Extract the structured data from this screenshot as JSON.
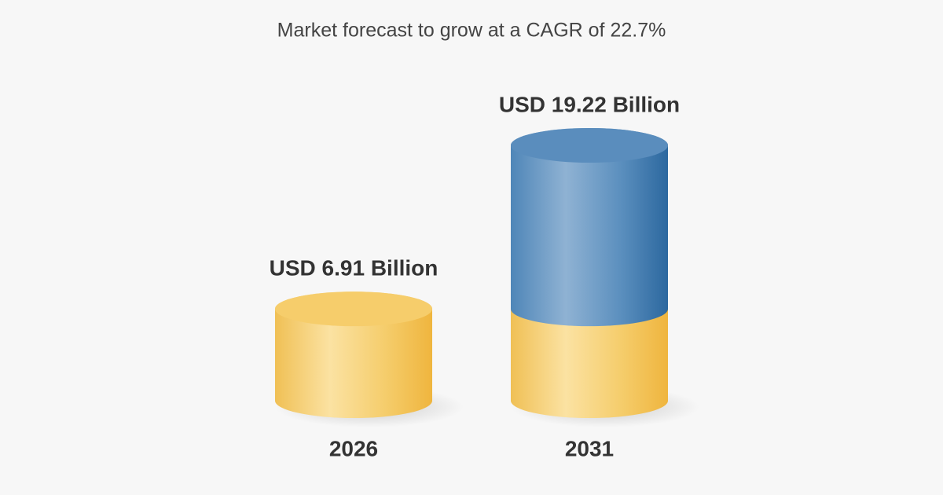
{
  "chart_data": {
    "type": "bar",
    "title": "Market forecast to grow at a CAGR of 22.7%",
    "categories": [
      "2026",
      "2031"
    ],
    "values": [
      6.91,
      19.22
    ],
    "value_labels": [
      "USD 6.91 Billion",
      "USD 19.22 Billion"
    ],
    "color": "#f0c050",
    "growth_color": "#4a82b4"
  }
}
